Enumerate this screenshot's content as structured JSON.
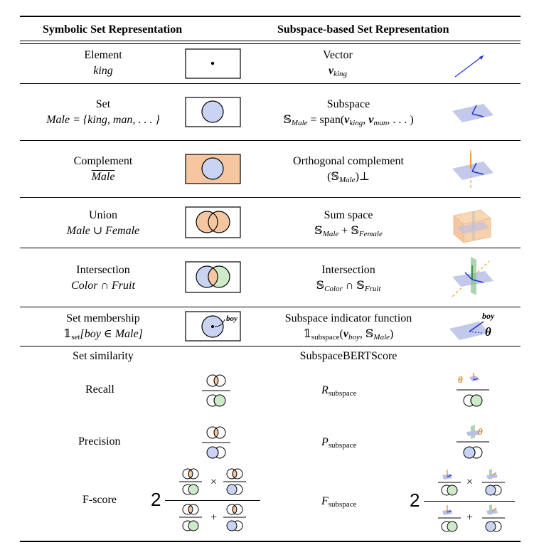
{
  "header": {
    "left": "Symbolic Set Representation",
    "right": "Subspace-based Set Representation"
  },
  "rows": [
    {
      "left_title": "Element",
      "left_expr": "king",
      "right_title": "Vector",
      "right_expr": "v",
      "right_sub": "king"
    },
    {
      "left_title": "Set",
      "left_expr": "Male = {king, man, . . . }",
      "right_title": "Subspace",
      "right_expr": "𝕊",
      "right_sub": "Male",
      "right_rest": " = span(",
      "right_v1": "v",
      "right_v1sub": "king",
      "right_comma": ", ",
      "right_v2": "v",
      "right_v2sub": "man",
      "right_end": ", . . . )"
    },
    {
      "left_title": "Complement",
      "left_expr": "Male",
      "right_title": "Orthogonal complement",
      "right_expr": "(𝕊",
      "right_sub": "Male",
      "right_end": ")⊥"
    },
    {
      "left_title": "Union",
      "left_expr": "Male ∪ Female",
      "right_title": "Sum space",
      "right_expr": "𝕊",
      "right_sub": "Male",
      "right_mid": " + 𝕊",
      "right_sub2": "Female"
    },
    {
      "left_title": "Intersection",
      "left_expr": "Color ∩ Fruit",
      "right_title": "Intersection",
      "right_expr": "𝕊",
      "right_sub": "Color",
      "right_mid": " ∩ 𝕊",
      "right_sub2": "Fruit"
    },
    {
      "left_title": "Set membership",
      "left_expr_pre": "𝟙",
      "left_sub": "set",
      "left_expr": "[boy ∈ Male]",
      "right_title": "Subspace indicator function",
      "right_expr_pre": "𝟙",
      "right_sub": "subspace",
      "right_expr": "(",
      "right_v": "v",
      "right_vsub": "boy",
      "right_mid": ", 𝕊",
      "right_sub2": "Male",
      "right_end": ")"
    }
  ],
  "icon_labels": {
    "boy": "boy",
    "theta": "θ"
  },
  "similarity": {
    "left_title": "Set similarity",
    "right_title": "SubspaceBERTScore",
    "recall": "Recall",
    "precision": "Precision",
    "fscore": "F-score",
    "r_sym": "R",
    "p_sym": "P",
    "f_sym": "F",
    "sub": "subspace",
    "two": "2",
    "times": "×",
    "plus": "+"
  },
  "colors": {
    "blue": "#c9d4f2",
    "blue_stroke": "#2233cc",
    "orange": "#f5c6a0",
    "green": "#cdebc9",
    "plane": "#b8bfe8"
  }
}
